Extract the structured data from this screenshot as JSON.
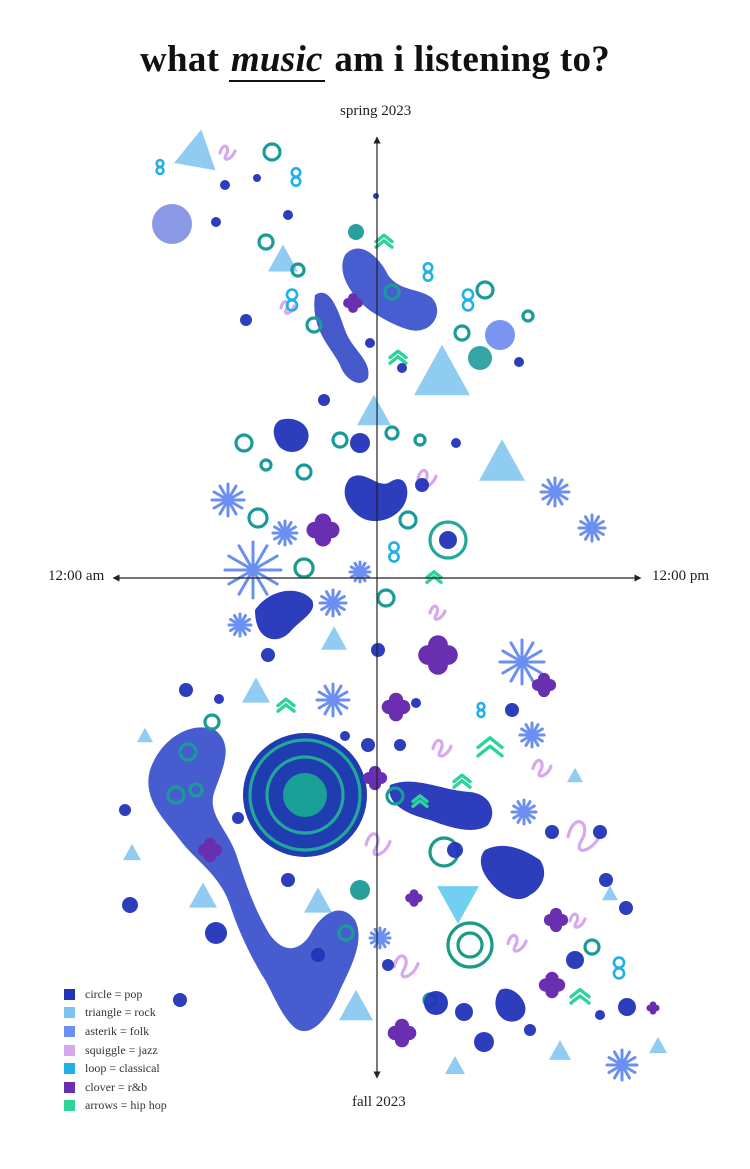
{
  "title": {
    "pre": "what ",
    "em": "music",
    "post": " am i listening to?"
  },
  "axes": {
    "top": "spring 2023",
    "bottom": "fall 2023",
    "left": "12:00 am",
    "right": "12:00 pm"
  },
  "legend": [
    {
      "shape": "circle",
      "label": "circle = pop",
      "color": "#2234b8"
    },
    {
      "shape": "triangle",
      "label": "triangle = rock",
      "color": "#7cc3f0"
    },
    {
      "shape": "asterisk",
      "label": "asterik = folk",
      "color": "#6b8ff0"
    },
    {
      "shape": "squiggle",
      "label": "squiggle = jazz",
      "color": "#d5a8f0"
    },
    {
      "shape": "loop",
      "label": "loop = classical",
      "color": "#1fb0e8"
    },
    {
      "shape": "clover",
      "label": "clover = r&b",
      "color": "#6a2fb0"
    },
    {
      "shape": "arrows",
      "label": "arrows = hip hop",
      "color": "#2ed39b"
    }
  ],
  "colors": {
    "pop": "#2234b8",
    "pop_soft": "#3e57d2",
    "rock": "#7cc3f0",
    "folk": "#6b8ff0",
    "jazz": "#d5a8f0",
    "classical": "#1fb0e8",
    "classical_teal": "#1a9a98",
    "rnb": "#6a2fb0",
    "hiphop": "#2ed39b",
    "axis": "#222222"
  },
  "chart_data": {
    "type": "scatter",
    "encoding": "shape = genre; vertical axis = season (spring 2023 to fall 2023); horizontal axis = time of day (12:00 am to 12:00 pm)",
    "categories": [
      "pop",
      "rock",
      "folk",
      "jazz",
      "classical",
      "r&b",
      "hip hop"
    ]
  }
}
